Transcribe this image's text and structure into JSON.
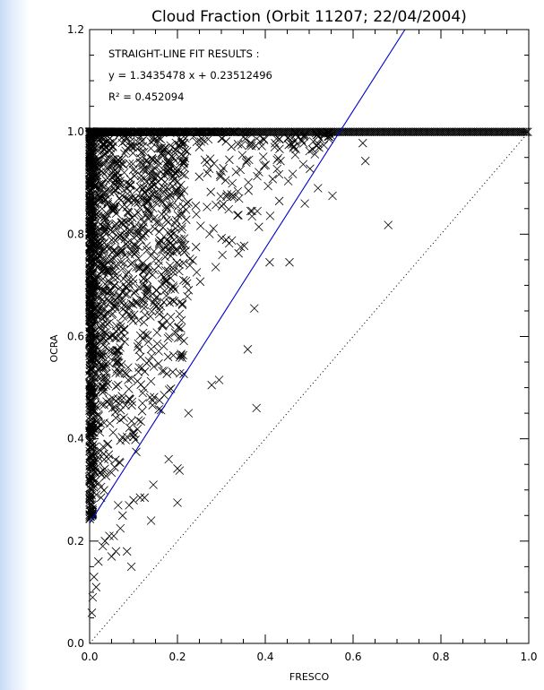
{
  "chart_data": {
    "type": "scatter",
    "title": "Cloud Fraction (Orbit 11207; 22/04/2004)",
    "xlabel": "FRESCO",
    "ylabel": "OCRA",
    "xlim": [
      0.0,
      1.0
    ],
    "ylim": [
      0.0,
      1.2
    ],
    "x_ticks": [
      "0.0",
      "0.2",
      "0.4",
      "0.6",
      "0.8",
      "1.0"
    ],
    "y_ticks": [
      "0.0",
      "0.2",
      "0.4",
      "0.6",
      "0.8",
      "1.0",
      "1.2"
    ],
    "marker": "x",
    "grid": false,
    "annotation": {
      "heading": "STRAIGHT-LINE FIT RESULTS :",
      "equation": "y =  1.3435478 x + 0.23512496",
      "r2": "R² = 0.452094"
    },
    "fit_line": {
      "slope": 1.3435478,
      "intercept": 0.23512496,
      "color": "#0000cc"
    },
    "one_to_one_line": {
      "slope": 1,
      "intercept": 0,
      "style": "dotted"
    },
    "points_notable": [
      [
        0.622,
        0.978
      ],
      [
        0.628,
        0.943
      ],
      [
        0.553,
        0.875
      ],
      [
        0.52,
        0.89
      ],
      [
        0.49,
        0.86
      ],
      [
        0.68,
        0.818
      ],
      [
        0.455,
        0.745
      ],
      [
        0.41,
        0.745
      ],
      [
        0.375,
        0.655
      ],
      [
        0.36,
        0.575
      ],
      [
        0.295,
        0.515
      ],
      [
        0.278,
        0.505
      ],
      [
        0.38,
        0.46
      ],
      [
        0.225,
        0.45
      ],
      [
        0.2,
        0.342
      ],
      [
        0.205,
        0.338
      ],
      [
        0.2,
        0.275
      ],
      [
        0.18,
        0.36
      ],
      [
        0.145,
        0.31
      ],
      [
        0.125,
        0.285
      ],
      [
        0.115,
        0.285
      ],
      [
        0.1,
        0.28
      ],
      [
        0.09,
        0.27
      ],
      [
        0.075,
        0.25
      ],
      [
        0.065,
        0.27
      ],
      [
        0.14,
        0.24
      ],
      [
        0.07,
        0.225
      ],
      [
        0.055,
        0.21
      ],
      [
        0.06,
        0.18
      ],
      [
        0.085,
        0.18
      ],
      [
        0.045,
        0.21
      ],
      [
        0.035,
        0.2
      ],
      [
        0.03,
        0.19
      ],
      [
        0.095,
        0.15
      ],
      [
        0.05,
        0.17
      ],
      [
        0.02,
        0.16
      ],
      [
        0.01,
        0.13
      ],
      [
        0.015,
        0.11
      ],
      [
        0.007,
        0.09
      ],
      [
        0.005,
        0.06
      ]
    ]
  }
}
